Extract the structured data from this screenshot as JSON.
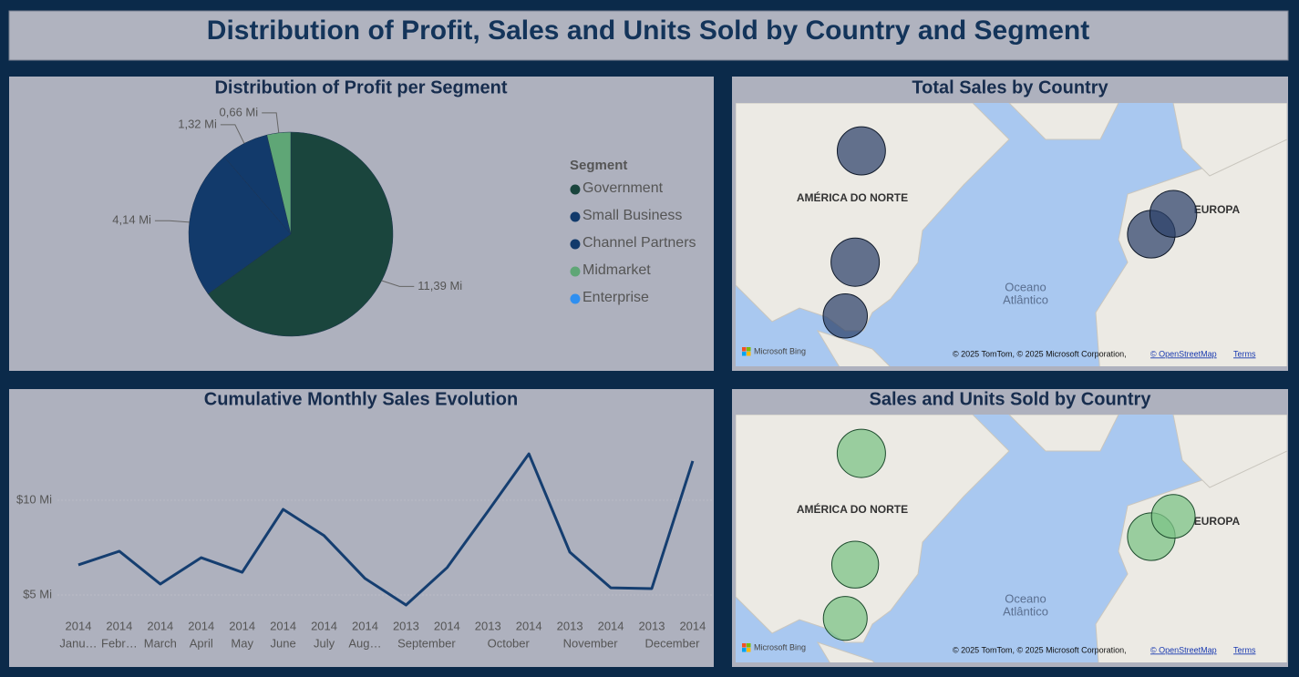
{
  "title": "Distribution of Profit, Sales and Units Sold by Country and Segment",
  "chart_data": [
    {
      "type": "pie",
      "title": "Distribution of Profit per Segment",
      "legend_title": "Segment",
      "categories": [
        "Government",
        "Small Business",
        "Channel Partners",
        "Midmarket",
        "Enterprise"
      ],
      "values": [
        11.39,
        4.14,
        1.32,
        0.66,
        null
      ],
      "value_labels": [
        "11,39 Mi",
        "4,14 Mi",
        "1,32 Mi",
        "0,66 Mi",
        null
      ],
      "colors": [
        "#1a453d",
        "#123a6b",
        "#123a6b",
        "#5fa676",
        "#2f8ff0"
      ]
    },
    {
      "type": "map",
      "title": "Total Sales by Country",
      "color": "rgba(45,65,105,0.72)",
      "stroke": "#101a2a",
      "x": [
        -106,
        -108.3,
        -112,
        2.2,
        10.4
      ],
      "y": [
        63.7,
        38.5,
        21.2,
        46.2,
        51.2
      ],
      "sizes": [
        24.89,
        25.03,
        20.95,
        24.35,
        23.51
      ],
      "region_labels": [
        "AMÉRICA DO NORTE",
        "EUROPA"
      ],
      "ocean_label": [
        "Oceano",
        "Atlântico"
      ],
      "provider": "Microsoft Bing",
      "attribution": "© 2025 TomTom, © 2025 Microsoft Corporation,",
      "osm": "© OpenStreetMap",
      "terms": "Terms"
    },
    {
      "type": "line",
      "title": "Cumulative Monthly Sales Evolution",
      "color": "#153e70",
      "categories": [
        "Janu…",
        "Febr…",
        "March",
        "April",
        "May",
        "June",
        "July",
        "Aug…",
        "September",
        null,
        "October",
        null,
        "November",
        null,
        "December",
        null
      ],
      "years": [
        "2014",
        "2014",
        "2014",
        "2014",
        "2014",
        "2014",
        "2014",
        "2014",
        "2013",
        "2014",
        "2013",
        "2014",
        "2013",
        "2014",
        "2013",
        "2014"
      ],
      "values": [
        6.59,
        7.31,
        5.58,
        6.97,
        6.2,
        9.52,
        8.13,
        5.87,
        4.47,
        6.44,
        9.42,
        12.45,
        7.26,
        5.38,
        5.34,
        12.07
      ],
      "ylim": [
        3.9,
        13.9
      ],
      "yticks": [
        {
          "value": 5,
          "label": "$5 Mi"
        },
        {
          "value": 10,
          "label": "$10 Mi"
        }
      ],
      "grid": true
    },
    {
      "type": "map",
      "title": "Sales and Units Sold by Country",
      "color": "rgba(125,195,135,0.75)",
      "stroke": "#1c4a2c",
      "x": [
        -106,
        -108.3,
        -112,
        2.2,
        10.4
      ],
      "y": [
        63.7,
        38.5,
        21.2,
        46.2,
        51.2
      ],
      "sizes": [
        247,
        232,
        203,
        240,
        201
      ],
      "region_labels": [
        "AMÉRICA DO NORTE",
        "EUROPA"
      ],
      "ocean_label": [
        "Oceano",
        "Atlântico"
      ],
      "provider": "Microsoft Bing",
      "attribution": "© 2025 TomTom, © 2025 Microsoft Corporation,",
      "osm": "© OpenStreetMap",
      "terms": "Terms"
    }
  ]
}
